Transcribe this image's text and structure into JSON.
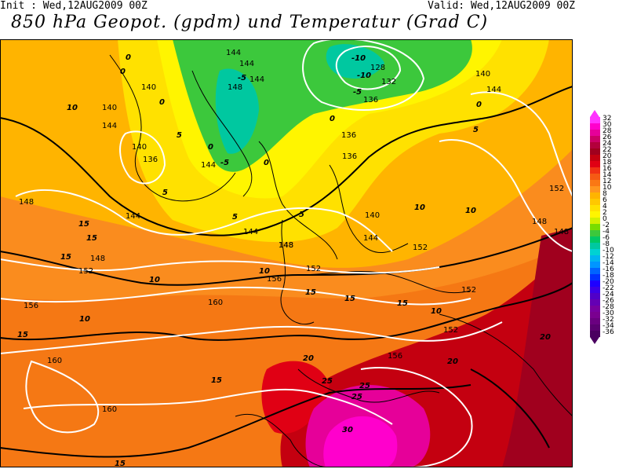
{
  "header": {
    "init": "Init : Wed,12AUG2009 00Z",
    "valid": "Valid: Wed,12AUG2009 00Z",
    "title": "850 hPa Geopot. (gpdm) und Temperatur (Grad C)"
  },
  "legend": {
    "items": [
      {
        "label": "32",
        "color": "#ff33ff"
      },
      {
        "label": "30",
        "color": "#ff00cc"
      },
      {
        "label": "28",
        "color": "#e60099"
      },
      {
        "label": "26",
        "color": "#cc0066"
      },
      {
        "label": "24",
        "color": "#b3003c"
      },
      {
        "label": "22",
        "color": "#a0001e"
      },
      {
        "label": "20",
        "color": "#c40010"
      },
      {
        "label": "18",
        "color": "#e00014"
      },
      {
        "label": "16",
        "color": "#f03214"
      },
      {
        "label": "14",
        "color": "#f55a14"
      },
      {
        "label": "12",
        "color": "#fa7814"
      },
      {
        "label": "10",
        "color": "#ff961e"
      },
      {
        "label": "8",
        "color": "#ffb400"
      },
      {
        "label": "6",
        "color": "#ffc800"
      },
      {
        "label": "4",
        "color": "#ffe100"
      },
      {
        "label": "2",
        "color": "#fff500"
      },
      {
        "label": "0",
        "color": "#d2f000"
      },
      {
        "label": "-2",
        "color": "#78dc00"
      },
      {
        "label": "-4",
        "color": "#3cc83c"
      },
      {
        "label": "-6",
        "color": "#00c864"
      },
      {
        "label": "-8",
        "color": "#00c8a0"
      },
      {
        "label": "-10",
        "color": "#00d2d2"
      },
      {
        "label": "-12",
        "color": "#00b4f0"
      },
      {
        "label": "-14",
        "color": "#0096ff"
      },
      {
        "label": "-16",
        "color": "#0064ff"
      },
      {
        "label": "-18",
        "color": "#0032ff"
      },
      {
        "label": "-20",
        "color": "#1e00ff"
      },
      {
        "label": "-22",
        "color": "#3c00e6"
      },
      {
        "label": "-24",
        "color": "#5000c8"
      },
      {
        "label": "-26",
        "color": "#6400b4"
      },
      {
        "label": "-28",
        "color": "#7800a0"
      },
      {
        "label": "-30",
        "color": "#7a0090"
      },
      {
        "label": "-32",
        "color": "#6a0080"
      },
      {
        "label": "-34",
        "color": "#5a0070"
      },
      {
        "label": "-36",
        "color": "#4a0060"
      }
    ]
  },
  "geopotential_labels": [
    "144",
    "144",
    "144",
    "148",
    "140",
    "140",
    "144",
    "140",
    "136",
    "144",
    "148",
    "144",
    "152",
    "156",
    "160",
    "160",
    "160",
    "148",
    "148",
    "152",
    "156",
    "152",
    "136",
    "136",
    "132",
    "128",
    "136",
    "140",
    "144",
    "152",
    "148",
    "148",
    "144",
    "140",
    "144",
    "148",
    "152",
    "152",
    "156"
  ],
  "temperature_labels": [
    "0",
    "0",
    "0",
    "0",
    "-5",
    "-5",
    "-10",
    "-10",
    "0",
    "-5",
    "0",
    "5",
    "10",
    "5",
    "5",
    "10",
    "15",
    "15",
    "15",
    "15",
    "10",
    "15",
    "10",
    "15",
    "15",
    "10",
    "20",
    "20",
    "20",
    "25",
    "25",
    "25",
    "30",
    "15",
    "15",
    "0",
    "5",
    "10",
    "10",
    "5"
  ]
}
